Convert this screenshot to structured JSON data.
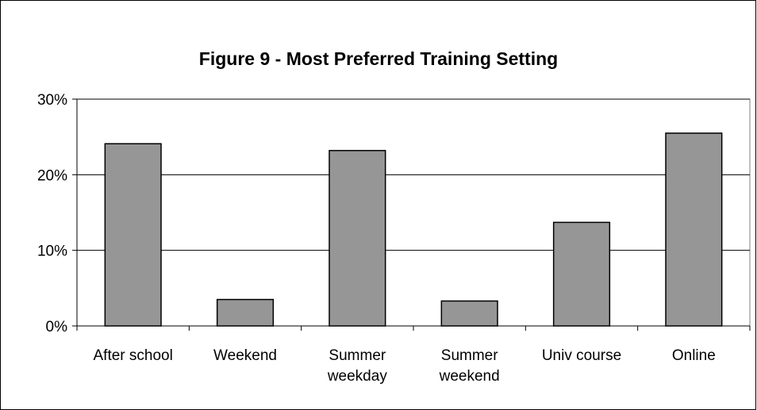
{
  "chart_data": {
    "type": "bar",
    "title": "Figure 9 - Most Preferred Training Setting",
    "categories": [
      "After school",
      "Weekend",
      "Summer\nweekday",
      "Summer\nweekend",
      "Univ course",
      "Online"
    ],
    "values": [
      24.1,
      3.5,
      23.2,
      3.3,
      13.7,
      25.5
    ],
    "color": "#969696",
    "ylim": [
      0,
      30
    ],
    "yticks": [
      {
        "value": 0,
        "label": "0%"
      },
      {
        "value": 10,
        "label": "10%"
      },
      {
        "value": 20,
        "label": "20%"
      },
      {
        "value": 30,
        "label": "30%"
      }
    ],
    "grid": true
  }
}
